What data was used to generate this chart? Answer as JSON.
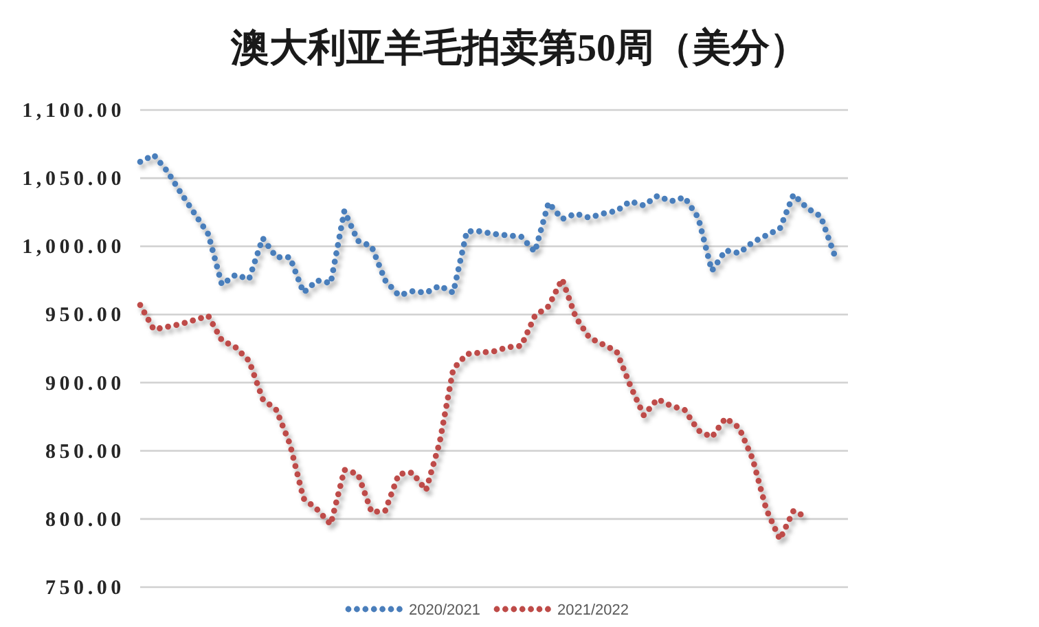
{
  "chart_data": {
    "type": "line",
    "title": "澳大利亚羊毛拍卖第50周（美分）",
    "categories": [
      null,
      null,
      null,
      null,
      null,
      null,
      null,
      null,
      null,
      null,
      null,
      null,
      null,
      null,
      null,
      null,
      null,
      null,
      null,
      null,
      null,
      null,
      null,
      null,
      null,
      null,
      null,
      null,
      null,
      null,
      null,
      null,
      null,
      null,
      null,
      null,
      null,
      null,
      null,
      null,
      null,
      null,
      null,
      null,
      null,
      null,
      null,
      null,
      null,
      null,
      null,
      null,
      null
    ],
    "series": [
      {
        "name": "2020/2021",
        "color": "#4a7ebb",
        "values": [
          1062,
          1067,
          1055,
          1039,
          1024,
          1009,
          972,
          979,
          976,
          1006,
          992,
          992,
          966,
          975,
          973,
          1026,
          1004,
          1000,
          975,
          964,
          967,
          966,
          971,
          966,
          1011,
          1011,
          1009,
          1008,
          1007,
          996,
          1032,
          1020,
          1024,
          1021,
          1024,
          1026,
          1033,
          1030,
          1037,
          1033,
          1036,
          1021,
          982,
          997,
          995,
          1003,
          1008,
          1013,
          1038,
          1028,
          1022,
          994,
          null
        ]
      },
      {
        "name": "2021/2022",
        "color": "#be4b48",
        "values": [
          957,
          939,
          941,
          943,
          946,
          949,
          931,
          926,
          916,
          888,
          880,
          855,
          815,
          807,
          796,
          836,
          833,
          805,
          806,
          833,
          834,
          821,
          856,
          910,
          921,
          922,
          923,
          926,
          927,
          949,
          956,
          976,
          948,
          933,
          928,
          923,
          898,
          876,
          888,
          883,
          880,
          865,
          860,
          874,
          867,
          844,
          807,
          785,
          806,
          801,
          null,
          null,
          null
        ]
      }
    ],
    "ylim": [
      750,
      1100
    ],
    "yticks": [
      {
        "value": 750,
        "label": "750.00"
      },
      {
        "value": 800,
        "label": "800.00"
      },
      {
        "value": 850,
        "label": "850.00"
      },
      {
        "value": 900,
        "label": "900.00"
      },
      {
        "value": 950,
        "label": "950.00"
      },
      {
        "value": 1000,
        "label": "1,000.00"
      },
      {
        "value": 1050,
        "label": "1,050.00"
      },
      {
        "value": 1100,
        "label": "1,100.00"
      }
    ],
    "grid": "y",
    "legend": "bottom",
    "line_style": "dotted",
    "marker": "none"
  }
}
